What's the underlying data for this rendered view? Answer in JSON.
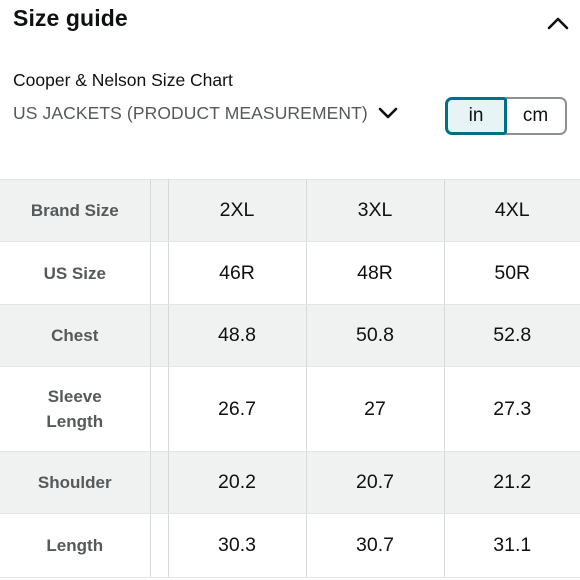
{
  "header": {
    "title": "Size guide",
    "collapse_icon": "chevron-up-icon"
  },
  "chart": {
    "brand_line": "Cooper & Nelson Size Chart",
    "category": "US JACKETS (PRODUCT MEASUREMENT)",
    "category_icon": "chevron-down-icon"
  },
  "units": {
    "options": [
      "in",
      "cm"
    ],
    "selected": "in",
    "accent_color": "#007185",
    "selected_bg": "#e6f4f5"
  },
  "table": {
    "rows": [
      {
        "label": "Brand Size",
        "values": [
          "2XL",
          "3XL",
          "4XL"
        ]
      },
      {
        "label": "US Size",
        "values": [
          "46R",
          "48R",
          "50R"
        ]
      },
      {
        "label": "Chest",
        "values": [
          "48.8",
          "50.8",
          "52.8"
        ]
      },
      {
        "label": "Sleeve Length",
        "values": [
          "26.7",
          "27",
          "27.3"
        ]
      },
      {
        "label": "Shoulder",
        "values": [
          "20.2",
          "20.7",
          "21.2"
        ]
      },
      {
        "label": "Length",
        "values": [
          "30.3",
          "30.7",
          "31.1"
        ]
      }
    ],
    "shaded_color": "#f0f2f2"
  }
}
